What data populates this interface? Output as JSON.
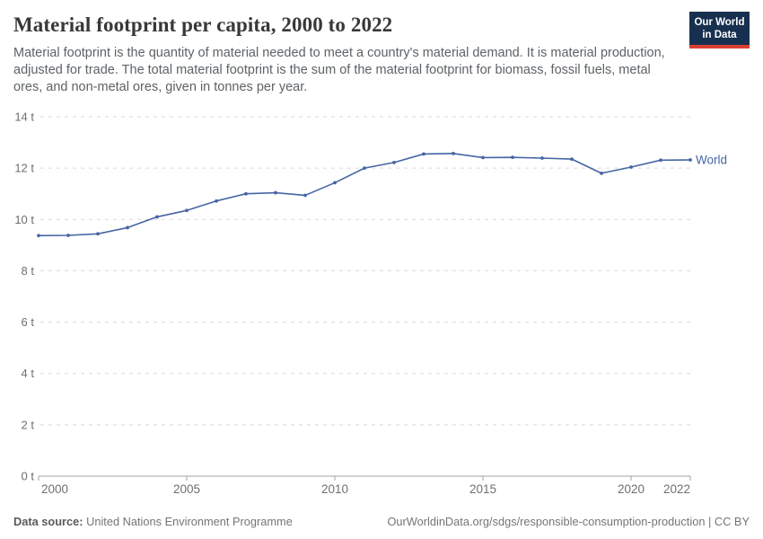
{
  "header": {
    "title": "Material footprint per capita, 2000 to 2022",
    "subtitle": "Material footprint is the quantity of material needed to meet a country's material demand. It is material production, adjusted for trade. The total material footprint is the sum of the material footprint for biomass, fossil fuels, metal ores, and non-metal ores, given in tonnes per year."
  },
  "logo": {
    "line1": "Our World",
    "line2": "in Data",
    "bg_color": "#18304f",
    "accent_color": "#dc3e32"
  },
  "chart_data": {
    "type": "line",
    "title": "Material footprint per capita, 2000 to 2022",
    "xlabel": "",
    "ylabel": "",
    "x": [
      2000,
      2001,
      2002,
      2003,
      2004,
      2005,
      2006,
      2007,
      2008,
      2009,
      2010,
      2011,
      2012,
      2013,
      2014,
      2015,
      2016,
      2017,
      2018,
      2019,
      2020,
      2021,
      2022
    ],
    "series": [
      {
        "name": "World",
        "color": "#4665a4",
        "values": [
          9.37,
          9.38,
          9.44,
          9.68,
          10.1,
          10.35,
          10.72,
          11.0,
          11.04,
          10.94,
          11.43,
          12.0,
          12.22,
          12.55,
          12.57,
          12.41,
          12.42,
          12.39,
          12.35,
          11.8,
          12.04,
          12.31,
          12.32
        ]
      }
    ],
    "unit": "t",
    "ylim": [
      0,
      14
    ],
    "yticks": [
      0,
      2,
      4,
      6,
      8,
      10,
      12,
      14
    ],
    "ytick_labels": [
      "0 t",
      "2 t",
      "4 t",
      "6 t",
      "8 t",
      "10 t",
      "12 t",
      "14 t"
    ],
    "xticks": [
      2000,
      2005,
      2010,
      2015,
      2020,
      2022
    ],
    "xtick_labels": [
      "2000",
      "2005",
      "2010",
      "2015",
      "2020",
      "2022"
    ],
    "grid": "horizontal-dashed",
    "legend_position": "end-of-line",
    "colors": {
      "grid": "#dadada",
      "axis": "#a3a3a3",
      "tick_text": "#6f6f6f"
    }
  },
  "footer": {
    "datasource_label": "Data source:",
    "datasource_value": "United Nations Environment Programme",
    "link": "OurWorldinData.org/sdgs/responsible-consumption-production | CC BY"
  }
}
